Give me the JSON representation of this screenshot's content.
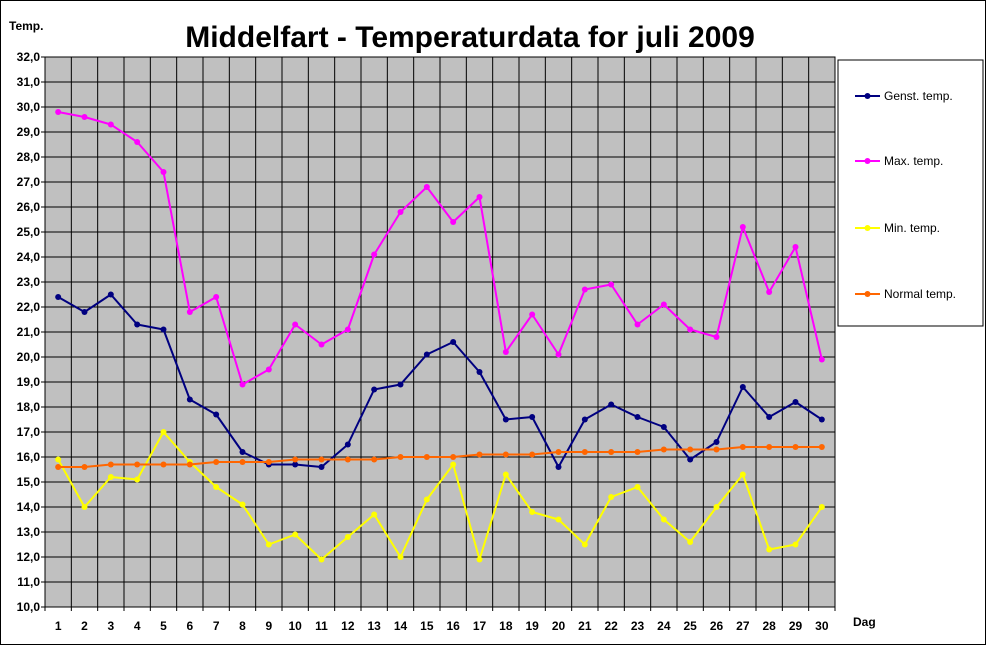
{
  "chart_data": {
    "type": "line",
    "title": "Middelfart - Temperaturdata for juli 2009",
    "ylabel": "Temp.",
    "xlabel": "Dag",
    "ylim": [
      10,
      32
    ],
    "ytick_step": 1,
    "y_tick_labels": [
      "10,0",
      "11,0",
      "12,0",
      "13,0",
      "14,0",
      "15,0",
      "16,0",
      "17,0",
      "18,0",
      "19,0",
      "20,0",
      "21,0",
      "22,0",
      "23,0",
      "24,0",
      "25,0",
      "26,0",
      "27,0",
      "28,0",
      "29,0",
      "30,0",
      "31,0",
      "32,0"
    ],
    "x": [
      1,
      2,
      3,
      4,
      5,
      6,
      7,
      8,
      9,
      10,
      11,
      12,
      13,
      14,
      15,
      16,
      17,
      18,
      19,
      20,
      21,
      22,
      23,
      24,
      25,
      26,
      27,
      28,
      29,
      30
    ],
    "grid": true,
    "plot_background": "#c0c0c0",
    "legend_position": "right",
    "series": [
      {
        "name": "Genst. temp.",
        "color": "#000080",
        "values": [
          22.4,
          21.8,
          22.5,
          21.3,
          21.1,
          18.3,
          17.7,
          16.2,
          15.7,
          15.7,
          15.6,
          16.5,
          18.7,
          18.9,
          20.1,
          20.6,
          19.4,
          17.5,
          17.6,
          15.6,
          17.5,
          18.1,
          17.6,
          17.2,
          15.9,
          16.6,
          18.8,
          17.6,
          18.2,
          17.5
        ]
      },
      {
        "name": "Max. temp.",
        "color": "#ff00ff",
        "values": [
          29.8,
          29.6,
          29.3,
          28.6,
          27.4,
          21.8,
          22.4,
          18.9,
          19.5,
          21.3,
          20.5,
          21.1,
          24.1,
          25.8,
          26.8,
          25.4,
          26.4,
          20.2,
          21.7,
          20.1,
          22.7,
          22.9,
          21.3,
          22.1,
          21.1,
          20.8,
          25.2,
          22.6,
          24.4,
          19.9
        ]
      },
      {
        "name": "Min. temp.",
        "color": "#ffff00",
        "values": [
          15.9,
          14.0,
          15.2,
          15.1,
          17.0,
          15.8,
          14.8,
          14.1,
          12.5,
          12.9,
          11.9,
          12.8,
          13.7,
          12.0,
          14.3,
          15.7,
          11.9,
          15.3,
          13.8,
          13.5,
          12.5,
          14.4,
          14.8,
          13.5,
          12.6,
          14.0,
          15.3,
          12.3,
          12.5,
          14.0
        ]
      },
      {
        "name": "Normal temp.",
        "color": "#ff6600",
        "values": [
          15.6,
          15.6,
          15.7,
          15.7,
          15.7,
          15.7,
          15.8,
          15.8,
          15.8,
          15.9,
          15.9,
          15.9,
          15.9,
          16.0,
          16.0,
          16.0,
          16.1,
          16.1,
          16.1,
          16.2,
          16.2,
          16.2,
          16.2,
          16.3,
          16.3,
          16.3,
          16.4,
          16.4,
          16.4,
          16.4
        ]
      }
    ]
  }
}
